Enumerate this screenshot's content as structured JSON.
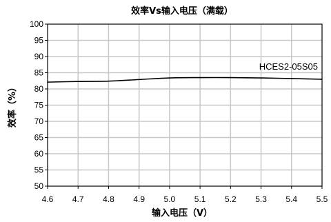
{
  "chart_data": {
    "type": "line",
    "title": "效率Vs输入电压（满载）",
    "xlabel": "输入电压（V）",
    "ylabel": "效率（%）",
    "xlim": [
      4.6,
      5.5
    ],
    "ylim": [
      50,
      100
    ],
    "x_ticks": [
      "4.6",
      "4.7",
      "4.8",
      "4.9",
      "5.0",
      "5.1",
      "5.2",
      "5.3",
      "5.4",
      "5.5"
    ],
    "y_ticks": [
      "50",
      "55",
      "60",
      "65",
      "70",
      "75",
      "80",
      "85",
      "90",
      "95",
      "100"
    ],
    "grid": true,
    "series": [
      {
        "name": "HCES2-05S05",
        "color": "#000000",
        "x": [
          4.6,
          4.7,
          4.8,
          4.9,
          5.0,
          5.1,
          5.2,
          5.3,
          5.4,
          5.5
        ],
        "y": [
          82.1,
          82.3,
          82.4,
          82.9,
          83.4,
          83.5,
          83.5,
          83.4,
          83.2,
          83.0
        ]
      }
    ]
  }
}
